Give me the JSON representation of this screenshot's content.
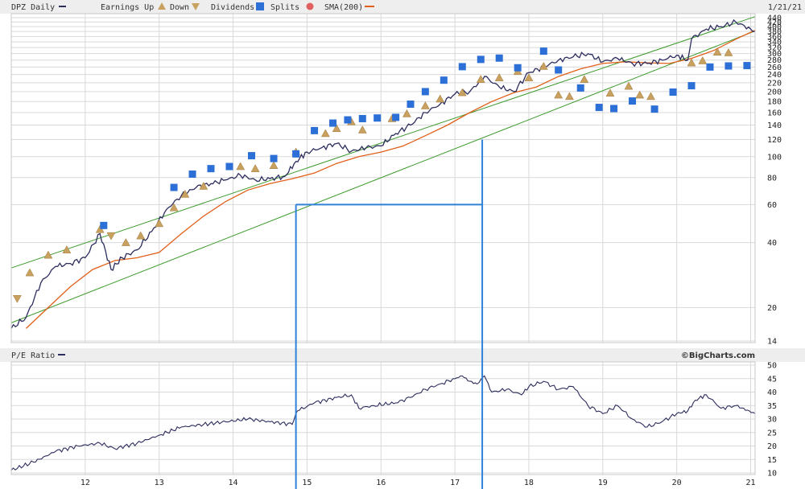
{
  "header": {
    "ticker_label": "DPZ Daily",
    "earnings_label": "Earnings Up",
    "down_label": "Down",
    "dividends_label": "Dividends",
    "splits_label": "Splits",
    "sma_label": "SMA(200)",
    "date": "1/21/21"
  },
  "pe_header": {
    "label": "P/E Ratio",
    "credit": "©BigCharts.com"
  },
  "icons": {
    "earnings_up": "triangle-up-icon",
    "earnings_down": "triangle-down-icon",
    "dividend": "dividend-D-icon",
    "split": "split-circle-icon"
  },
  "colors": {
    "price": "#2d2d5e",
    "sma": "#e0601a",
    "trend": "#3a9a2a",
    "projection": "#2f82d8",
    "dividend": "#2c6fd6",
    "earnings": "#c8a060"
  },
  "chart_data": [
    {
      "type": "line",
      "title": "DPZ Daily",
      "scale": "log",
      "ylim": [
        14,
        440
      ],
      "x_ticks": [
        "12",
        "13",
        "14",
        "15",
        "16",
        "17",
        "18",
        "19",
        "20",
        "21"
      ],
      "y_ticks": [
        14,
        20,
        40,
        60,
        80,
        100,
        120,
        140,
        160,
        180,
        200,
        220,
        240,
        260,
        280,
        300,
        320,
        340,
        360,
        380,
        400,
        420,
        440
      ],
      "grid": true,
      "series": [
        {
          "name": "DPZ Daily",
          "x": [
            2011.0,
            2011.2,
            2011.4,
            2011.6,
            2011.8,
            2012.0,
            2012.2,
            2012.35,
            2012.5,
            2012.7,
            2012.9,
            2013.1,
            2013.3,
            2013.5,
            2013.7,
            2013.9,
            2014.1,
            2014.3,
            2014.5,
            2014.7,
            2014.85,
            2015.0,
            2015.2,
            2015.4,
            2015.6,
            2015.8,
            2016.0,
            2016.2,
            2016.4,
            2016.6,
            2016.8,
            2017.0,
            2017.2,
            2017.4,
            2017.6,
            2017.8,
            2018.0,
            2018.2,
            2018.4,
            2018.6,
            2018.8,
            2019.0,
            2019.2,
            2019.4,
            2019.6,
            2019.8,
            2020.0,
            2020.15,
            2020.2,
            2020.4,
            2020.6,
            2020.8,
            2021.0,
            2021.06
          ],
          "values": [
            16,
            18,
            26,
            31,
            32,
            34,
            44,
            30,
            34,
            37,
            45,
            57,
            66,
            72,
            75,
            78,
            82,
            78,
            79,
            81,
            95,
            105,
            110,
            115,
            106,
            110,
            112,
            128,
            140,
            160,
            175,
            195,
            200,
            235,
            210,
            200,
            245,
            260,
            280,
            290,
            300,
            275,
            285,
            270,
            270,
            280,
            295,
            280,
            350,
            390,
            400,
            420,
            390,
            380
          ]
        },
        {
          "name": "SMA(200)",
          "x": [
            2011.2,
            2011.5,
            2011.8,
            2012.1,
            2012.4,
            2012.7,
            2013.0,
            2013.3,
            2013.6,
            2013.9,
            2014.2,
            2014.5,
            2014.8,
            2015.1,
            2015.4,
            2015.7,
            2016.0,
            2016.3,
            2016.6,
            2016.9,
            2017.2,
            2017.5,
            2017.8,
            2018.1,
            2018.4,
            2018.7,
            2019.0,
            2019.3,
            2019.6,
            2019.9,
            2020.2,
            2020.5,
            2020.8,
            2021.06
          ],
          "values": [
            16,
            20,
            25,
            30,
            33,
            34,
            36,
            44,
            53,
            62,
            70,
            75,
            79,
            84,
            93,
            100,
            105,
            112,
            125,
            140,
            160,
            180,
            198,
            210,
            235,
            255,
            270,
            275,
            272,
            270,
            285,
            310,
            350,
            385
          ]
        }
      ],
      "earnings_markers": [
        {
          "x": 2011.08,
          "dir": "down",
          "value": 22
        },
        {
          "x": 2011.25,
          "dir": "up",
          "value": 29
        },
        {
          "x": 2011.5,
          "dir": "up",
          "value": 35
        },
        {
          "x": 2011.75,
          "dir": "up",
          "value": 37
        },
        {
          "x": 2012.2,
          "dir": "up",
          "value": 46
        },
        {
          "x": 2012.35,
          "dir": "down",
          "value": 43
        },
        {
          "x": 2012.55,
          "dir": "up",
          "value": 40
        },
        {
          "x": 2012.75,
          "dir": "up",
          "value": 43
        },
        {
          "x": 2013.0,
          "dir": "up",
          "value": 49
        },
        {
          "x": 2013.2,
          "dir": "up",
          "value": 58
        },
        {
          "x": 2013.35,
          "dir": "up",
          "value": 67
        },
        {
          "x": 2013.6,
          "dir": "up",
          "value": 73
        },
        {
          "x": 2014.1,
          "dir": "up",
          "value": 90
        },
        {
          "x": 2014.3,
          "dir": "up",
          "value": 88
        },
        {
          "x": 2014.55,
          "dir": "up",
          "value": 91
        },
        {
          "x": 2014.85,
          "dir": "up",
          "value": 105
        },
        {
          "x": 2015.25,
          "dir": "up",
          "value": 128
        },
        {
          "x": 2015.4,
          "dir": "up",
          "value": 135
        },
        {
          "x": 2015.6,
          "dir": "up",
          "value": 145
        },
        {
          "x": 2015.75,
          "dir": "up",
          "value": 133
        },
        {
          "x": 2016.15,
          "dir": "up",
          "value": 150
        },
        {
          "x": 2016.35,
          "dir": "up",
          "value": 158
        },
        {
          "x": 2016.6,
          "dir": "up",
          "value": 172
        },
        {
          "x": 2016.8,
          "dir": "up",
          "value": 185
        },
        {
          "x": 2017.1,
          "dir": "up",
          "value": 198
        },
        {
          "x": 2017.35,
          "dir": "up",
          "value": 228
        },
        {
          "x": 2017.6,
          "dir": "up",
          "value": 232
        },
        {
          "x": 2017.85,
          "dir": "up",
          "value": 248
        },
        {
          "x": 2018.0,
          "dir": "up",
          "value": 232
        },
        {
          "x": 2018.2,
          "dir": "up",
          "value": 262
        },
        {
          "x": 2018.4,
          "dir": "up",
          "value": 193
        },
        {
          "x": 2018.55,
          "dir": "up",
          "value": 190
        },
        {
          "x": 2018.75,
          "dir": "up",
          "value": 228
        },
        {
          "x": 2019.1,
          "dir": "up",
          "value": 197
        },
        {
          "x": 2019.35,
          "dir": "up",
          "value": 212
        },
        {
          "x": 2019.5,
          "dir": "up",
          "value": 193
        },
        {
          "x": 2019.65,
          "dir": "up",
          "value": 190
        },
        {
          "x": 2020.2,
          "dir": "up",
          "value": 272
        },
        {
          "x": 2020.35,
          "dir": "up",
          "value": 278
        },
        {
          "x": 2020.55,
          "dir": "up",
          "value": 305
        },
        {
          "x": 2020.7,
          "dir": "up",
          "value": 303
        }
      ],
      "dividend_markers": [
        {
          "x": 2012.25,
          "value": 48
        },
        {
          "x": 2013.2,
          "value": 72
        },
        {
          "x": 2013.45,
          "value": 83
        },
        {
          "x": 2013.7,
          "value": 88
        },
        {
          "x": 2013.95,
          "value": 90
        },
        {
          "x": 2014.25,
          "value": 101
        },
        {
          "x": 2014.55,
          "value": 98
        },
        {
          "x": 2014.85,
          "value": 103
        },
        {
          "x": 2015.1,
          "value": 132
        },
        {
          "x": 2015.35,
          "value": 143
        },
        {
          "x": 2015.55,
          "value": 148
        },
        {
          "x": 2015.75,
          "value": 150
        },
        {
          "x": 2015.95,
          "value": 151
        },
        {
          "x": 2016.2,
          "value": 152
        },
        {
          "x": 2016.4,
          "value": 175
        },
        {
          "x": 2016.6,
          "value": 200
        },
        {
          "x": 2016.85,
          "value": 226
        },
        {
          "x": 2017.1,
          "value": 261
        },
        {
          "x": 2017.35,
          "value": 282
        },
        {
          "x": 2017.6,
          "value": 286
        },
        {
          "x": 2017.85,
          "value": 258
        },
        {
          "x": 2018.2,
          "value": 308
        },
        {
          "x": 2018.4,
          "value": 252
        },
        {
          "x": 2018.7,
          "value": 208
        },
        {
          "x": 2018.95,
          "value": 169
        },
        {
          "x": 2019.15,
          "value": 167
        },
        {
          "x": 2019.4,
          "value": 181
        },
        {
          "x": 2019.7,
          "value": 166
        },
        {
          "x": 2019.95,
          "value": 199
        },
        {
          "x": 2020.2,
          "value": 213
        },
        {
          "x": 2020.45,
          "value": 260
        },
        {
          "x": 2020.7,
          "value": 263
        },
        {
          "x": 2020.95,
          "value": 264
        }
      ],
      "trend_lines": [
        {
          "x": [
            2011.0,
            2021.06
          ],
          "values": [
            30.5,
            445
          ]
        },
        {
          "x": [
            2011.0,
            2021.06
          ],
          "values": [
            17,
            382
          ]
        }
      ],
      "projection": {
        "x_start": 2014.85,
        "x_end": 2017.37,
        "start_value": 60,
        "end_value": 120
      }
    },
    {
      "type": "line",
      "title": "P/E Ratio",
      "ylim": [
        10,
        50
      ],
      "y_ticks": [
        10,
        15,
        20,
        25,
        30,
        35,
        40,
        45,
        50
      ],
      "x_ticks": [
        "12",
        "13",
        "14",
        "15",
        "16",
        "17",
        "18",
        "19",
        "20",
        "21"
      ],
      "grid": true,
      "series": [
        {
          "name": "P/E Ratio",
          "x": [
            2011.0,
            2011.3,
            2011.6,
            2011.9,
            2012.2,
            2012.4,
            2012.7,
            2013.0,
            2013.3,
            2013.6,
            2013.9,
            2014.2,
            2014.5,
            2014.8,
            2014.87,
            2015.1,
            2015.4,
            2015.6,
            2015.7,
            2015.9,
            2016.2,
            2016.4,
            2016.6,
            2016.8,
            2017.0,
            2017.1,
            2017.2,
            2017.3,
            2017.4,
            2017.5,
            2017.7,
            2017.9,
            2018.0,
            2018.2,
            2018.4,
            2018.6,
            2018.8,
            2019.0,
            2019.2,
            2019.4,
            2019.6,
            2019.8,
            2020.0,
            2020.15,
            2020.25,
            2020.4,
            2020.6,
            2020.8,
            2021.06
          ],
          "values": [
            11,
            14,
            18,
            20,
            21,
            19,
            21,
            24,
            27,
            28,
            29,
            30,
            29,
            28,
            33,
            36,
            38,
            39,
            34,
            35,
            36,
            38,
            41,
            43,
            45,
            46,
            44,
            43,
            46,
            40,
            41,
            39,
            42,
            44,
            41,
            42,
            35,
            32,
            35,
            30,
            27,
            29,
            32,
            33,
            37,
            39,
            34,
            35,
            32
          ]
        }
      ]
    }
  ]
}
